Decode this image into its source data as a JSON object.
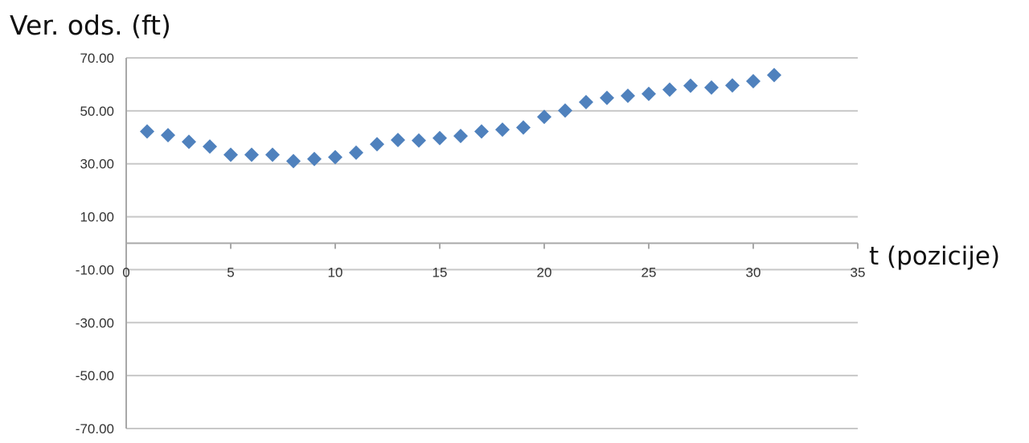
{
  "chart_data": {
    "type": "scatter",
    "ylabel": "Ver. ods. (ft)",
    "xlabel": "t (pozicije)",
    "xlim": [
      0,
      35
    ],
    "ylim": [
      -70,
      70
    ],
    "x_ticks": [
      "0",
      "5",
      "10",
      "15",
      "20",
      "25",
      "30",
      "35"
    ],
    "y_ticks": [
      "70.00",
      "50.00",
      "30.00",
      "10.00",
      "-10.00",
      "-30.00",
      "-50.00",
      "-70.00"
    ],
    "grid": true,
    "marker": "diamond",
    "colors": {
      "marker": "#4f81bd",
      "grid": "#c8c8c8"
    },
    "series": [
      {
        "x": [
          1,
          2,
          3,
          4,
          5,
          6,
          7,
          8,
          9,
          10,
          11,
          12,
          13,
          14,
          15,
          16,
          17,
          18,
          19,
          20,
          21,
          22,
          23,
          24,
          25,
          26,
          27,
          28,
          29,
          30,
          31
        ],
        "y": [
          42.2,
          40.8,
          38.3,
          36.5,
          33.4,
          33.4,
          33.4,
          31.0,
          31.8,
          32.5,
          34.2,
          37.4,
          39.0,
          38.8,
          39.7,
          40.5,
          42.2,
          42.9,
          43.7,
          47.7,
          50.1,
          53.3,
          54.9,
          55.7,
          56.4,
          58.0,
          59.5,
          58.8,
          59.6,
          61.2,
          63.5
        ]
      }
    ]
  }
}
